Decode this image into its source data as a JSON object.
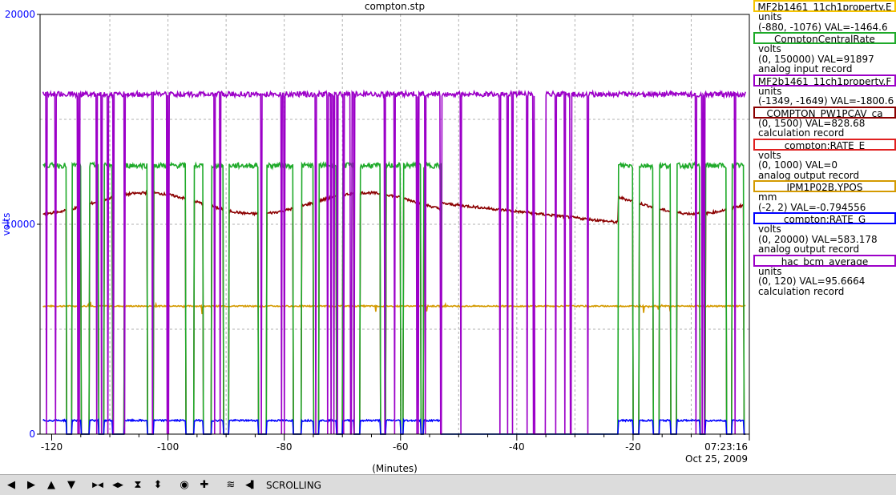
{
  "chart_data": {
    "type": "line",
    "title": "compton.stp",
    "ylabel": "volts",
    "xlabel": "(Minutes)",
    "ylim": [
      0,
      20000
    ],
    "xlim": [
      -122,
      0
    ],
    "y_ticks": [
      {
        "value": 0,
        "label": "0"
      },
      {
        "value": 10000,
        "label": "10000"
      },
      {
        "value": 20000,
        "label": "20000"
      }
    ],
    "x_ticks": [
      {
        "value": -120,
        "label": "-120"
      },
      {
        "value": -100,
        "label": "-100"
      },
      {
        "value": -80,
        "label": "-80"
      },
      {
        "value": -60,
        "label": "-60"
      },
      {
        "value": -40,
        "label": "-40"
      },
      {
        "value": -20,
        "label": "-20"
      }
    ],
    "time_label": "07:23:16",
    "date_label": "Oct 25, 2009",
    "grid": true,
    "legend_position": "right",
    "on_intervals": [
      [
        -121.5,
        -117.5
      ],
      [
        -116.5,
        -115.0
      ],
      [
        -113.5,
        -112.0
      ],
      [
        -111.0,
        -109.5
      ],
      [
        -107.5,
        -103.5
      ],
      [
        -102.5,
        -97.0
      ],
      [
        -95.5,
        -94.0
      ],
      [
        -92.5,
        -90.5
      ],
      [
        -89.5,
        -84.5
      ],
      [
        -83.0,
        -78.5
      ],
      [
        -77.0,
        -75.0
      ],
      [
        -74.0,
        -71.0
      ],
      [
        -70.0,
        -68.0
      ],
      [
        -67.0,
        -63.5
      ],
      [
        -62.5,
        -60.0
      ],
      [
        -59.5,
        -56.5
      ],
      [
        -56.0,
        -53.0
      ],
      [
        -22.5,
        -20.0
      ],
      [
        -19.0,
        -16.5
      ],
      [
        -15.5,
        -13.5
      ],
      [
        -12.5,
        -8.5
      ],
      [
        -7.5,
        -4.0
      ],
      [
        -3.0,
        -1.0
      ]
    ],
    "series": [
      {
        "name": "MF2b1461_11ch1property.F",
        "color": "#9c00c8",
        "level": 16200,
        "noise": 250,
        "mode": "gated_purple"
      },
      {
        "name": "ComptonCentralRate",
        "color": "#1faa2a",
        "level": 12800,
        "noise": 250,
        "mode": "gated",
        "stop": -53.0
      },
      {
        "name": "COMPTON_PW1PCAV_ca",
        "color": "#8b0000",
        "level": 11000,
        "noise": 120,
        "mode": "gated_drift"
      },
      {
        "name": "IPM1P02B.YPOS",
        "color": "#d49a00",
        "level": 6100,
        "noise": 60,
        "mode": "flat"
      },
      {
        "name": "compton:RATE_G",
        "color": "#0000ff",
        "level": 650,
        "noise": 80,
        "mode": "gated",
        "stop": -53.0
      }
    ]
  },
  "legend": [
    {
      "name": "MF2b1461_11ch1property.E",
      "color": "#f5c400",
      "lines": [
        "units",
        "(-880, -1076) VAL=-1464.6"
      ]
    },
    {
      "name": "ComptonCentralRate",
      "color": "#1faa2a",
      "lines": [
        "volts",
        "(0, 150000) VAL=91897",
        "analog input record"
      ]
    },
    {
      "name": "MF2b1461_11ch1property.F",
      "color": "#9c00c8",
      "lines": [
        "units",
        "(-1349, -1649) VAL=-1800.6"
      ]
    },
    {
      "name": "COMPTON_PW1PCAV_ca",
      "color": "#8b0000",
      "lines": [
        "(0, 1500) VAL=828.68",
        "calculation record"
      ]
    },
    {
      "name": "compton:RATE_E",
      "color": "#e02020",
      "lines": [
        "volts",
        "(0, 1000) VAL=0",
        "analog output record"
      ]
    },
    {
      "name": "IPM1P02B.YPOS",
      "color": "#d49a00",
      "lines": [
        "mm",
        "(-2, 2) VAL=-0.794556"
      ]
    },
    {
      "name": "compton:RATE_G",
      "color": "#0000ff",
      "lines": [
        "volts",
        "(0, 20000) VAL=583.178",
        "analog output record"
      ]
    },
    {
      "name": "hac_bcm_average",
      "color": "#9c00c8",
      "lines": [
        "units",
        "(0, 120) VAL=95.6664",
        "calculation record"
      ]
    }
  ],
  "toolbar": {
    "buttons": [
      {
        "icon": "arrow-left-icon",
        "glyph": "◀"
      },
      {
        "icon": "arrow-right-icon",
        "glyph": "▶"
      },
      {
        "icon": "arrow-up-icon",
        "glyph": "▲"
      },
      {
        "icon": "arrow-down-icon",
        "glyph": "▼"
      },
      {
        "icon": "zoom-in-horizontal-icon",
        "glyph": "▶◀"
      },
      {
        "icon": "zoom-out-horizontal-icon",
        "glyph": "◀▶"
      },
      {
        "icon": "zoom-in-vertical-icon",
        "glyph": "⧗"
      },
      {
        "icon": "zoom-out-vertical-icon",
        "glyph": "⬍"
      },
      {
        "icon": "stop-icon",
        "glyph": "◉"
      },
      {
        "icon": "add-icon",
        "glyph": "✚"
      },
      {
        "icon": "autoscale-icon",
        "glyph": "≋"
      },
      {
        "icon": "scroll-back-icon",
        "glyph": "◀▌"
      }
    ],
    "status": "SCROLLING"
  }
}
